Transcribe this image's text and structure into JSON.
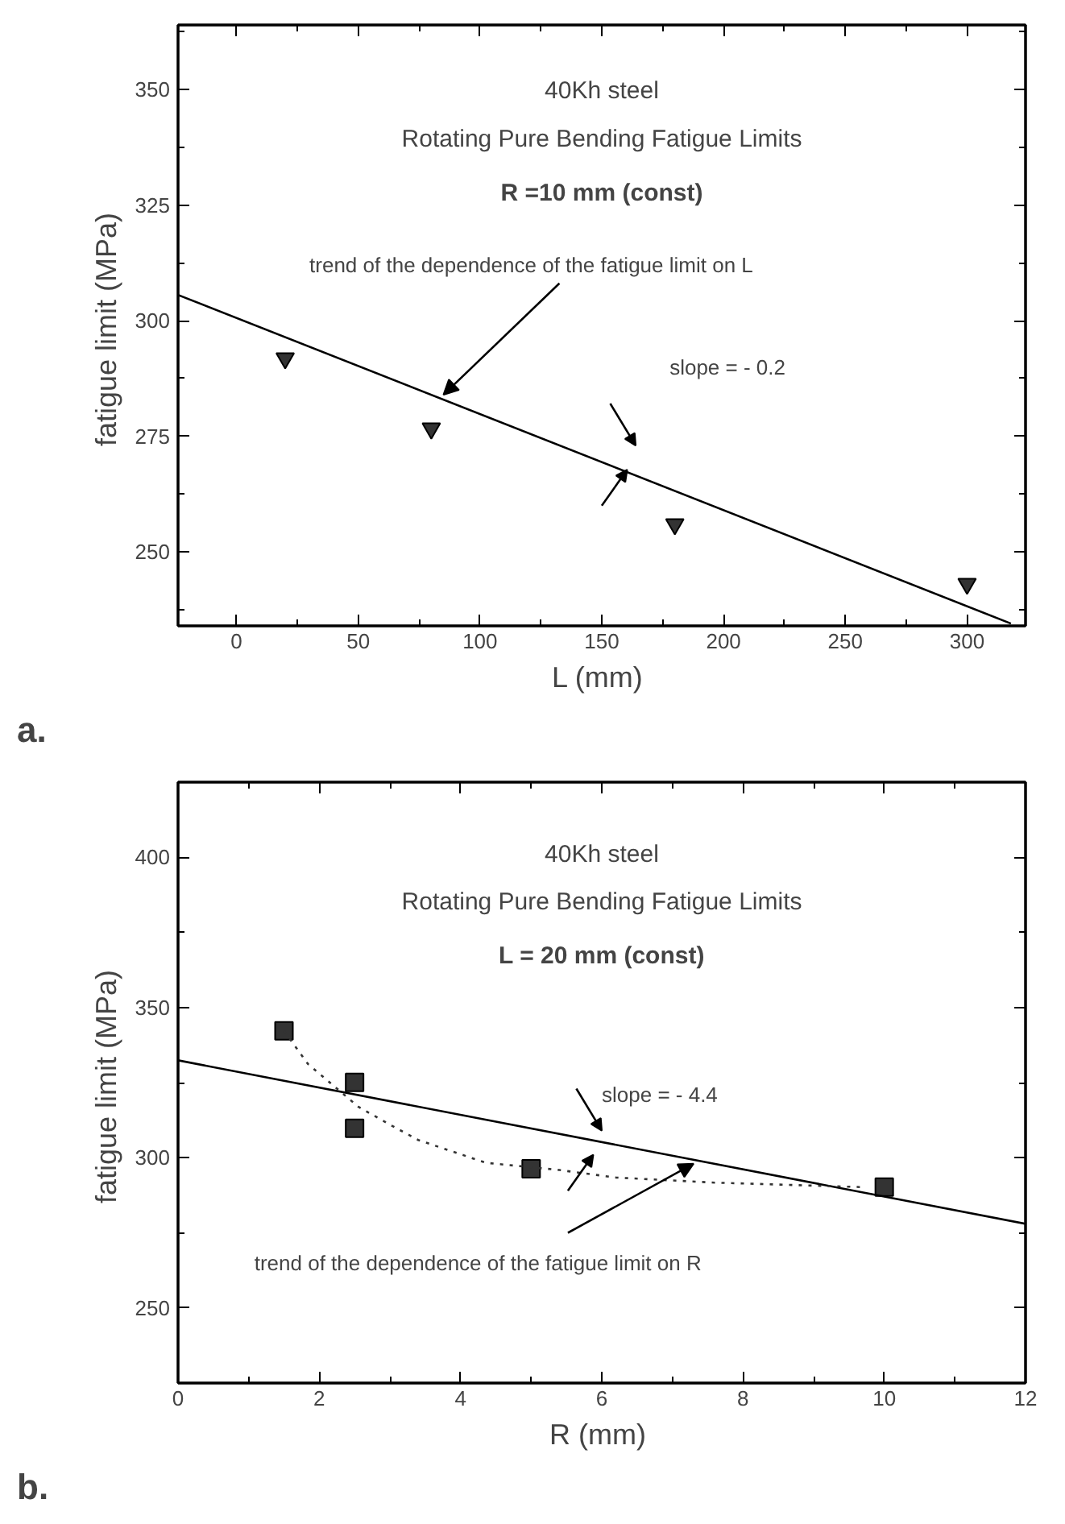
{
  "chart_data": [
    {
      "type": "scatter",
      "title": "40Kh steel",
      "subtitle": "Rotating Pure Bending Fatigue Limits",
      "xlabel": "L  (mm)",
      "ylabel": "fatigue limit  (MPa)",
      "xlim": [
        -24,
        324
      ],
      "ylim": [
        234,
        364
      ],
      "xticks": [
        0,
        50,
        100,
        150,
        200,
        250,
        300
      ],
      "yticks": [
        250,
        275,
        300,
        325,
        350
      ],
      "series": [
        {
          "marker": "triangle",
          "color": "#333333",
          "x": [
            20,
            80,
            180,
            300
          ],
          "values": [
            291.9,
            276.7,
            256,
            243.1
          ]
        },
        {
          "type": "line",
          "line_style": "solid",
          "color": "#000000",
          "x": [
            -24,
            318
          ],
          "values": [
            305.6,
            234.5
          ]
        }
      ],
      "annotations": [
        "R =10 mm (const)",
        {
          "text": "trend of the dependence of the fatigue limit on L",
          "x": 85,
          "y": 284
        },
        "slope = - 0.2",
        "a."
      ]
    },
    {
      "type": "scatter",
      "title": "40Kh steel",
      "subtitle": "Rotating Pure Bending Fatigue Limits",
      "xlabel": "R  (mm)",
      "ylabel": "fatigue limit  (MPa)",
      "xlim": [
        0,
        12
      ],
      "ylim": [
        225,
        425
      ],
      "xticks": [
        0,
        2,
        4,
        6,
        8,
        10,
        12
      ],
      "yticks": [
        250,
        300,
        350,
        400
      ],
      "series": [
        {
          "marker": "square",
          "color": "#333333",
          "x": [
            1.5,
            2.5,
            2.5,
            5,
            10
          ],
          "values": [
            342.2,
            325.1,
            309.8,
            296.3,
            290.2
          ]
        },
        {
          "type": "line",
          "line_style": "solid",
          "color": "#000000",
          "x": [
            0,
            12
          ],
          "values": [
            332.4,
            278.0
          ]
        },
        {
          "type": "line",
          "line_style": "dotted",
          "color": "#333333",
          "x": [
            1.5,
            1.84,
            2.55,
            3.0,
            3.4,
            4.36,
            5.4,
            6.2,
            7.6,
            8.6,
            9.7
          ],
          "values": [
            342.2,
            331.2,
            317,
            311,
            305.9,
            298.3,
            295.9,
            293.4,
            291.7,
            291,
            290.2
          ]
        }
      ],
      "annotations": [
        "L = 20 mm (const)",
        "slope = - 4.4",
        {
          "text": "trend of the dependence of the fatigue limit on R",
          "x": 7.3,
          "y": 298
        },
        "b."
      ]
    }
  ]
}
